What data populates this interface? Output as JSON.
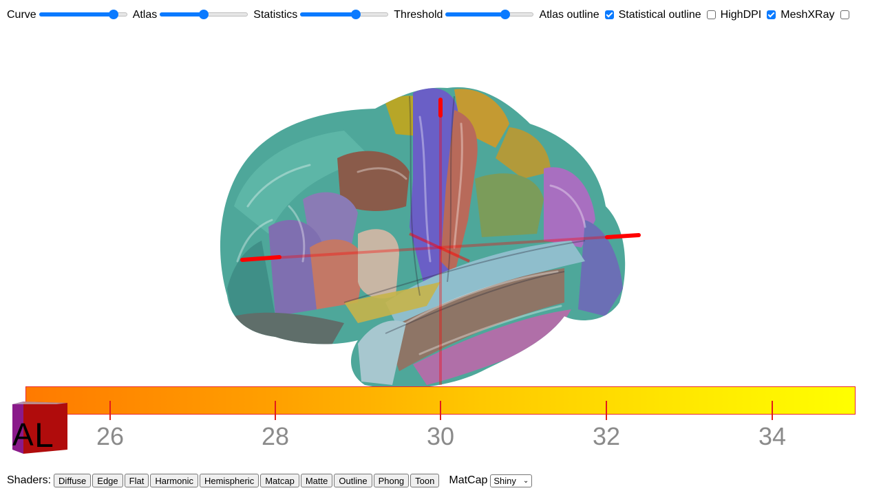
{
  "toolbar": {
    "sliders": [
      {
        "label": "Curve",
        "value": 0.85
      },
      {
        "label": "Atlas",
        "value": 0.5
      },
      {
        "label": "Statistics",
        "value": 0.63
      },
      {
        "label": "Threshold",
        "value": 0.68
      }
    ],
    "checkboxes": [
      {
        "label": "Atlas outline",
        "checked": true
      },
      {
        "label": "Statistical outline",
        "checked": false
      },
      {
        "label": "HighDPI",
        "checked": true
      },
      {
        "label": "MeshXRay",
        "checked": false
      }
    ]
  },
  "colorbar": {
    "ticks": [
      "26",
      "28",
      "30",
      "32",
      "34"
    ],
    "colors": [
      "#ff7a00",
      "#ffa000",
      "#ffc800",
      "#ffe800",
      "#ffff00"
    ],
    "border_color": "#e8282a"
  },
  "orientation_cube": {
    "labels": [
      "A",
      "L"
    ]
  },
  "shaders": {
    "label": "Shaders:",
    "buttons": [
      "Diffuse",
      "Edge",
      "Flat",
      "Harmonic",
      "Hemispheric",
      "Matcap",
      "Matte",
      "Outline",
      "Phong",
      "Toon"
    ]
  },
  "matcap": {
    "label": "MatCap",
    "selected": "Shiny"
  },
  "colors": {
    "accent": "#0a7aff",
    "crosshair": "#ff0000"
  }
}
